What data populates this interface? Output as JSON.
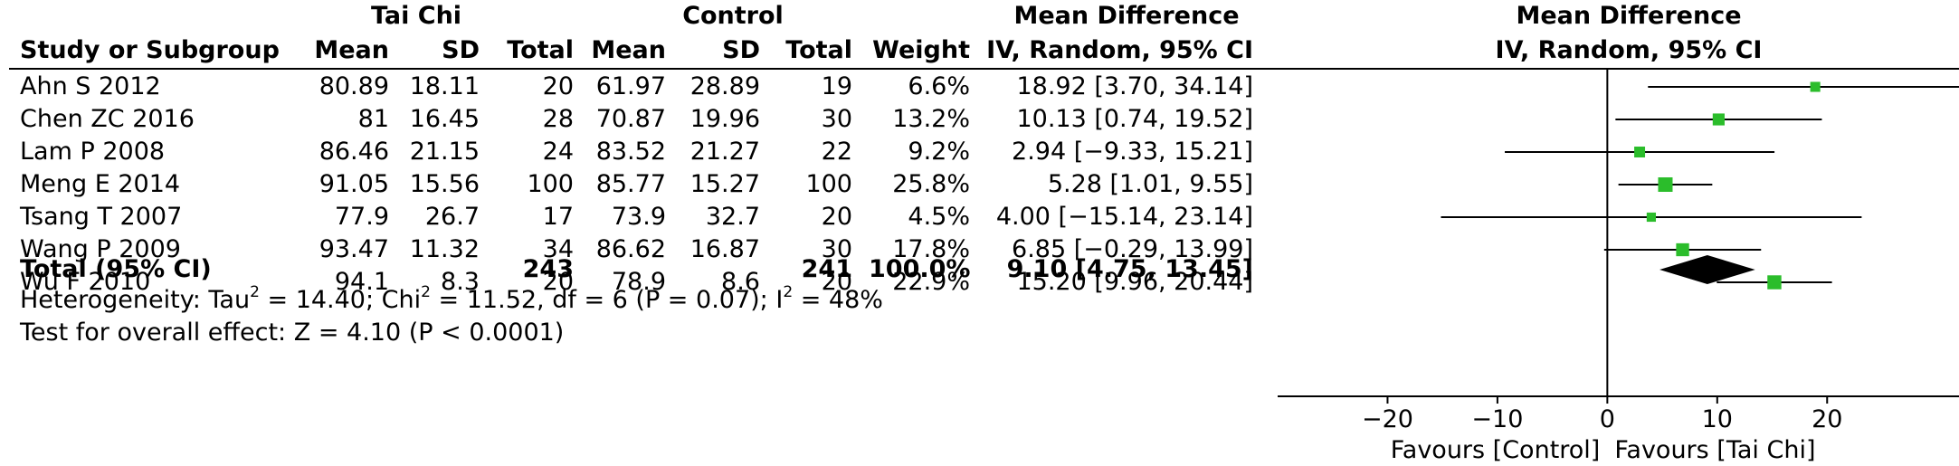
{
  "headers": {
    "group1": "Tai Chi",
    "group2": "Control",
    "md_top": "Mean Difference",
    "md_sub": "IV, Random, 95% CI",
    "plot_top": "Mean Difference",
    "plot_sub": "IV, Random, 95% CI",
    "study": "Study or Subgroup",
    "mean": "Mean",
    "sd": "SD",
    "total": "Total",
    "weight": "Weight"
  },
  "studies": [
    {
      "name": "Ahn S 2012",
      "m1": "80.89",
      "sd1": "18.11",
      "n1": "20",
      "m2": "61.97",
      "sd2": "28.89",
      "n2": "19",
      "weight": "6.6%",
      "ci_text": "18.92 [3.70, 34.14]"
    },
    {
      "name": "Chen ZC 2016",
      "m1": "81",
      "sd1": "16.45",
      "n1": "28",
      "m2": "70.87",
      "sd2": "19.96",
      "n2": "30",
      "weight": "13.2%",
      "ci_text": "10.13 [0.74, 19.52]"
    },
    {
      "name": "Lam P 2008",
      "m1": "86.46",
      "sd1": "21.15",
      "n1": "24",
      "m2": "83.52",
      "sd2": "21.27",
      "n2": "22",
      "weight": "9.2%",
      "ci_text": "2.94 [−9.33, 15.21]"
    },
    {
      "name": "Meng E 2014",
      "m1": "91.05",
      "sd1": "15.56",
      "n1": "100",
      "m2": "85.77",
      "sd2": "15.27",
      "n2": "100",
      "weight": "25.8%",
      "ci_text": "5.28 [1.01, 9.55]"
    },
    {
      "name": "Tsang T 2007",
      "m1": "77.9",
      "sd1": "26.7",
      "n1": "17",
      "m2": "73.9",
      "sd2": "32.7",
      "n2": "20",
      "weight": "4.5%",
      "ci_text": "4.00 [−15.14, 23.14]"
    },
    {
      "name": "Wang P 2009",
      "m1": "93.47",
      "sd1": "11.32",
      "n1": "34",
      "m2": "86.62",
      "sd2": "16.87",
      "n2": "30",
      "weight": "17.8%",
      "ci_text": "6.85 [−0.29, 13.99]"
    },
    {
      "name": "Wu F 2010",
      "m1": "94.1",
      "sd1": "8.3",
      "n1": "20",
      "m2": "78.9",
      "sd2": "8.6",
      "n2": "20",
      "weight": "22.9%",
      "ci_text": "15.20 [9.96, 20.44]"
    }
  ],
  "total": {
    "label": "Total (95% CI)",
    "n1": "243",
    "n2": "241",
    "weight": "100.0%",
    "ci_text": "9.10 [4.75, 13.45]"
  },
  "heterogeneity": {
    "prefix": "Heterogeneity: Tau",
    "a": " = 14.40; Chi",
    "b": " = 11.52, df = 6 (P = 0.07); I",
    "c": " = 48%",
    "sup": "2"
  },
  "overall_effect": "Test for overall effect: Z = 4.10 (P < 0.0001)",
  "chart_data": {
    "type": "forest",
    "xlim": [
      -30,
      32
    ],
    "ticks": [
      -20,
      -10,
      0,
      10,
      20
    ],
    "tick_labels": [
      "−20",
      "−10",
      "0",
      "10",
      "20"
    ],
    "xlabel_left": "Favours [Control]",
    "xlabel_right": "Favours [Tai Chi]",
    "marker_color": "#2bbd2b",
    "points": [
      {
        "study": "Ahn S 2012",
        "md": 18.92,
        "lo": 3.7,
        "hi": 34.14,
        "weight": 6.6
      },
      {
        "study": "Chen ZC 2016",
        "md": 10.13,
        "lo": 0.74,
        "hi": 19.52,
        "weight": 13.2
      },
      {
        "study": "Lam P 2008",
        "md": 2.94,
        "lo": -9.33,
        "hi": 15.21,
        "weight": 9.2
      },
      {
        "study": "Meng E 2014",
        "md": 5.28,
        "lo": 1.01,
        "hi": 9.55,
        "weight": 25.8
      },
      {
        "study": "Tsang T 2007",
        "md": 4.0,
        "lo": -15.14,
        "hi": 23.14,
        "weight": 4.5
      },
      {
        "study": "Wang P 2009",
        "md": 6.85,
        "lo": -0.29,
        "hi": 13.99,
        "weight": 17.8
      },
      {
        "study": "Wu F 2010",
        "md": 15.2,
        "lo": 9.96,
        "hi": 20.44,
        "weight": 22.9
      }
    ],
    "pooled": {
      "md": 9.1,
      "lo": 4.75,
      "hi": 13.45
    }
  }
}
